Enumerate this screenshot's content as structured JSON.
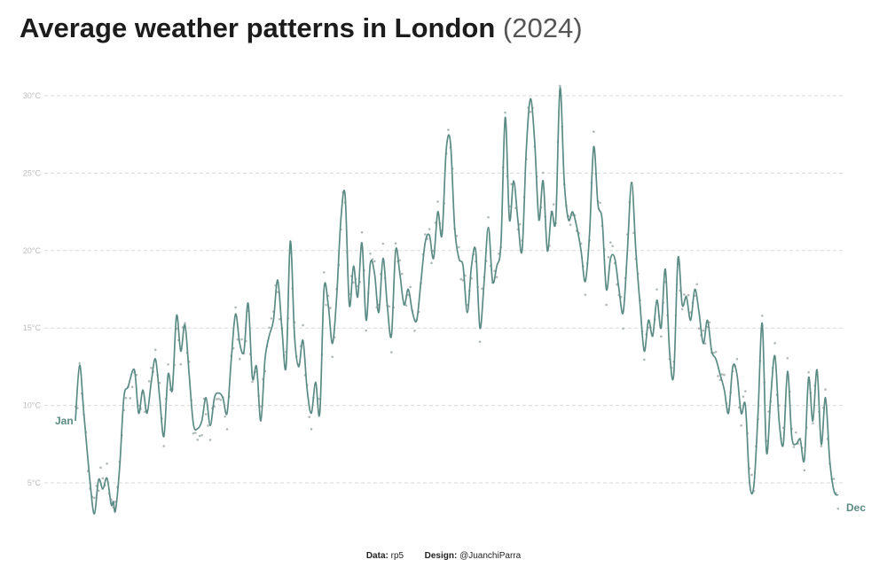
{
  "header": {
    "title_bold": "Average weather patterns in London",
    "title_light": "(2024)"
  },
  "footer": {
    "data_label": "Data:",
    "data_value": "rp5",
    "design_label": "Design:",
    "design_value": "@JuanchiParra"
  },
  "colors": {
    "line": "#5b8b85",
    "points": "#b0bab8",
    "grid": "#d9d9d9",
    "tick_text": "#bdbdbd"
  },
  "chart_data": {
    "type": "line",
    "title": "Average weather patterns in London (2024)",
    "xlabel": "",
    "ylabel": "",
    "x_axis": "day of year",
    "xlim": [
      1,
      366
    ],
    "ylim": [
      2,
      32
    ],
    "y_ticks": [
      5,
      10,
      15,
      20,
      25,
      30
    ],
    "y_tick_labels": [
      "5°C",
      "10°C",
      "15°C",
      "20°C",
      "25°C",
      "30°C"
    ],
    "grid": "horizontal dashed",
    "start_label": "Jan",
    "end_label": "Dec",
    "anchors": [
      [
        1,
        9.0
      ],
      [
        3,
        12.6
      ],
      [
        5,
        9.5
      ],
      [
        8,
        5.0
      ],
      [
        10,
        3.0
      ],
      [
        12,
        5.2
      ],
      [
        14,
        4.6
      ],
      [
        16,
        5.3
      ],
      [
        18,
        3.6
      ],
      [
        19,
        3.8
      ],
      [
        20,
        3.2
      ],
      [
        22,
        6.0
      ],
      [
        24,
        10.5
      ],
      [
        26,
        11.2
      ],
      [
        29,
        12.3
      ],
      [
        31,
        9.5
      ],
      [
        33,
        11.0
      ],
      [
        35,
        9.5
      ],
      [
        37,
        11.5
      ],
      [
        39,
        13.0
      ],
      [
        41,
        10.5
      ],
      [
        43,
        8.0
      ],
      [
        45,
        12.0
      ],
      [
        47,
        11.0
      ],
      [
        49,
        15.8
      ],
      [
        51,
        13.5
      ],
      [
        53,
        15.2
      ],
      [
        55,
        12.0
      ],
      [
        57,
        8.8
      ],
      [
        59,
        8.5
      ],
      [
        61,
        9.0
      ],
      [
        63,
        10.5
      ],
      [
        65,
        8.7
      ],
      [
        67,
        10.5
      ],
      [
        69,
        10.8
      ],
      [
        71,
        10.5
      ],
      [
        73,
        9.5
      ],
      [
        75,
        13.0
      ],
      [
        77,
        15.9
      ],
      [
        79,
        14.0
      ],
      [
        81,
        13.5
      ],
      [
        83,
        16.6
      ],
      [
        85,
        11.8
      ],
      [
        87,
        12.5
      ],
      [
        89,
        9.0
      ],
      [
        91,
        13.0
      ],
      [
        93,
        14.5
      ],
      [
        95,
        15.5
      ],
      [
        97,
        18.1
      ],
      [
        99,
        15.0
      ],
      [
        101,
        12.5
      ],
      [
        103,
        20.6
      ],
      [
        105,
        14.5
      ],
      [
        107,
        12.5
      ],
      [
        109,
        14.2
      ],
      [
        111,
        11.0
      ],
      [
        113,
        9.5
      ],
      [
        115,
        11.5
      ],
      [
        117,
        9.5
      ],
      [
        119,
        17.5
      ],
      [
        121,
        16.5
      ],
      [
        123,
        14.0
      ],
      [
        125,
        17.0
      ],
      [
        127,
        22.0
      ],
      [
        129,
        23.6
      ],
      [
        131,
        16.5
      ],
      [
        133,
        19.0
      ],
      [
        135,
        17.0
      ],
      [
        137,
        20.5
      ],
      [
        139,
        15.5
      ],
      [
        141,
        19.2
      ],
      [
        143,
        18.5
      ],
      [
        145,
        16.0
      ],
      [
        147,
        19.5
      ],
      [
        149,
        16.5
      ],
      [
        151,
        14.5
      ],
      [
        153,
        20.0
      ],
      [
        155,
        18.5
      ],
      [
        157,
        16.5
      ],
      [
        159,
        17.5
      ],
      [
        161,
        16.0
      ],
      [
        163,
        15.5
      ],
      [
        165,
        18.0
      ],
      [
        167,
        20.5
      ],
      [
        169,
        21.0
      ],
      [
        171,
        19.5
      ],
      [
        173,
        22.5
      ],
      [
        175,
        21.0
      ],
      [
        177,
        26.5
      ],
      [
        179,
        27.0
      ],
      [
        181,
        21.5
      ],
      [
        183,
        19.5
      ],
      [
        185,
        19.0
      ],
      [
        187,
        16.0
      ],
      [
        189,
        19.0
      ],
      [
        191,
        20.0
      ],
      [
        193,
        15.0
      ],
      [
        195,
        18.0
      ],
      [
        197,
        21.5
      ],
      [
        199,
        18.0
      ],
      [
        201,
        19.0
      ],
      [
        203,
        20.5
      ],
      [
        205,
        28.6
      ],
      [
        207,
        22.0
      ],
      [
        209,
        24.5
      ],
      [
        211,
        22.0
      ],
      [
        213,
        20.0
      ],
      [
        215,
        26.5
      ],
      [
        217,
        29.8
      ],
      [
        219,
        27.0
      ],
      [
        221,
        22.0
      ],
      [
        223,
        24.5
      ],
      [
        225,
        20.0
      ],
      [
        227,
        22.5
      ],
      [
        229,
        22.0
      ],
      [
        231,
        30.5
      ],
      [
        233,
        24.5
      ],
      [
        235,
        22.0
      ],
      [
        237,
        22.5
      ],
      [
        239,
        21.5
      ],
      [
        241,
        20.0
      ],
      [
        243,
        18.0
      ],
      [
        245,
        21.0
      ],
      [
        247,
        26.7
      ],
      [
        249,
        23.0
      ],
      [
        251,
        22.0
      ],
      [
        253,
        17.5
      ],
      [
        255,
        19.5
      ],
      [
        257,
        19.5
      ],
      [
        259,
        17.5
      ],
      [
        261,
        16.0
      ],
      [
        263,
        20.0
      ],
      [
        265,
        24.4
      ],
      [
        267,
        20.0
      ],
      [
        269,
        16.5
      ],
      [
        271,
        13.5
      ],
      [
        273,
        15.5
      ],
      [
        275,
        14.5
      ],
      [
        277,
        16.8
      ],
      [
        279,
        15.0
      ],
      [
        281,
        18.8
      ],
      [
        283,
        13.5
      ],
      [
        285,
        12.0
      ],
      [
        287,
        19.5
      ],
      [
        289,
        16.5
      ],
      [
        291,
        17.0
      ],
      [
        293,
        15.5
      ],
      [
        295,
        17.5
      ],
      [
        297,
        16.0
      ],
      [
        299,
        14.0
      ],
      [
        301,
        15.5
      ],
      [
        303,
        13.5
      ],
      [
        305,
        13.0
      ],
      [
        307,
        12.0
      ],
      [
        309,
        11.0
      ],
      [
        311,
        9.5
      ],
      [
        313,
        12.5
      ],
      [
        315,
        12.0
      ],
      [
        317,
        9.5
      ],
      [
        319,
        10.0
      ],
      [
        321,
        5.0
      ],
      [
        323,
        4.8
      ],
      [
        325,
        9.5
      ],
      [
        327,
        15.3
      ],
      [
        329,
        7.0
      ],
      [
        331,
        10.5
      ],
      [
        333,
        13.2
      ],
      [
        335,
        9.0
      ],
      [
        337,
        7.5
      ],
      [
        339,
        12.2
      ],
      [
        341,
        8.0
      ],
      [
        343,
        7.5
      ],
      [
        345,
        7.8
      ],
      [
        347,
        6.5
      ],
      [
        349,
        11.8
      ],
      [
        351,
        9.0
      ],
      [
        353,
        12.3
      ],
      [
        355,
        7.5
      ],
      [
        357,
        10.5
      ],
      [
        359,
        6.5
      ],
      [
        361,
        4.5
      ],
      [
        363,
        4.2
      ]
    ]
  }
}
